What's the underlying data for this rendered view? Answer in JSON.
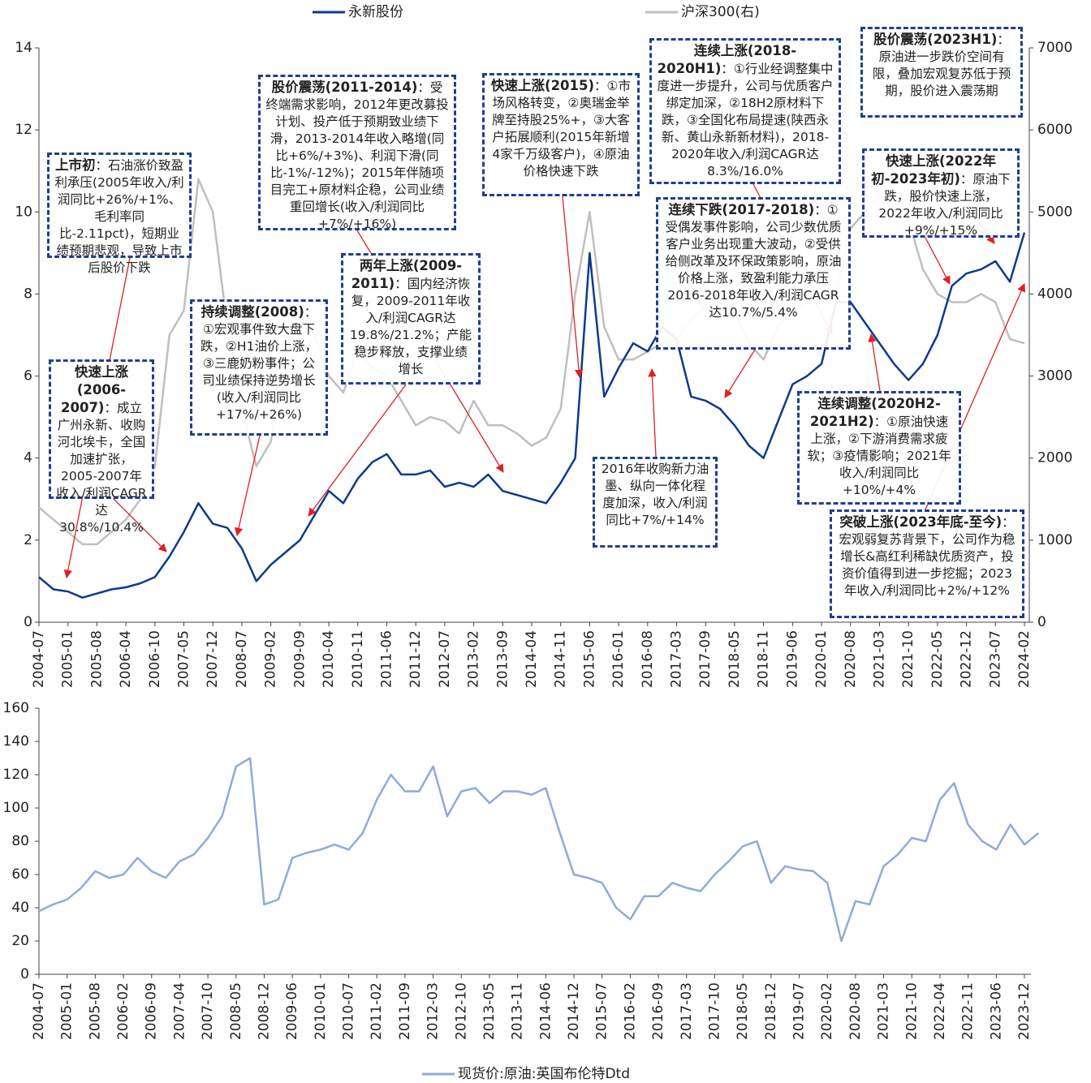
{
  "chart_data": [
    {
      "type": "line",
      "categories": [
        "2004-07",
        null,
        "2005-01",
        null,
        "2005-08",
        null,
        "2006-04",
        null,
        "2006-10",
        null,
        "2007-05",
        null,
        "2007-12",
        null,
        "2008-07",
        null,
        "2009-02",
        null,
        "2009-09",
        null,
        "2010-04",
        null,
        "2010-11",
        null,
        "2011-06",
        null,
        "2011-12",
        null,
        "2012-07",
        null,
        "2013-02",
        null,
        "2013-09",
        null,
        "2014-04",
        null,
        "2014-11",
        null,
        "2015-06",
        null,
        "2016-01",
        null,
        "2016-08",
        null,
        "2017-03",
        null,
        "2017-09",
        null,
        "2018-05",
        null,
        "2018-11",
        null,
        "2019-06",
        null,
        "2020-01",
        null,
        "2020-08",
        null,
        "2021-03",
        null,
        "2021-10",
        null,
        "2022-05",
        null,
        "2022-12",
        null,
        "2023-07",
        null,
        "2024-02"
      ],
      "series": [
        {
          "name": "永新股份",
          "color": "#0b3a8f",
          "values": [
            1.1,
            0.8,
            0.75,
            0.6,
            0.7,
            0.8,
            0.85,
            0.95,
            1.1,
            1.6,
            2.2,
            2.9,
            2.4,
            2.3,
            1.8,
            1.0,
            1.4,
            1.7,
            2.0,
            2.6,
            3.2,
            2.9,
            3.5,
            3.9,
            4.1,
            3.6,
            3.6,
            3.7,
            3.3,
            3.4,
            3.3,
            3.6,
            3.2,
            3.1,
            3.0,
            2.9,
            3.4,
            4.0,
            9.0,
            5.5,
            6.2,
            6.8,
            6.6,
            7.2,
            6.9,
            5.5,
            5.4,
            5.2,
            4.8,
            4.3,
            4.0,
            4.9,
            5.8,
            6.0,
            6.3,
            7.8,
            7.8,
            7.3,
            6.8,
            6.3,
            5.9,
            6.3,
            7.0,
            8.2,
            8.5,
            8.6,
            8.8,
            8.3,
            9.5
          ]
        },
        {
          "name": "沪深300(右)",
          "color": "#bfbfbf",
          "axis": "y2",
          "values": [
            1400,
            1250,
            1100,
            950,
            950,
            1100,
            1250,
            1500,
            1900,
            3500,
            3800,
            5400,
            5000,
            3600,
            2600,
            1900,
            2200,
            3200,
            3100,
            3500,
            3000,
            2800,
            3300,
            3100,
            3000,
            2700,
            2400,
            2500,
            2450,
            2300,
            2700,
            2400,
            2400,
            2300,
            2150,
            2250,
            2600,
            4000,
            5000,
            3600,
            3200,
            3200,
            3300,
            3400,
            3450,
            3700,
            3850,
            4000,
            3800,
            3400,
            3200,
            3600,
            3800,
            3900,
            4100,
            4000,
            4800,
            5000,
            5200,
            5000,
            4900,
            4300,
            4000,
            3900,
            3900,
            4000,
            3900,
            3450,
            3400
          ]
        }
      ],
      "ylim": [
        0,
        14
      ],
      "yticks": [
        0,
        2,
        4,
        6,
        8,
        10,
        12,
        14
      ],
      "y2lim": [
        0,
        7000
      ],
      "y2ticks": [
        0,
        1000,
        2000,
        3000,
        4000,
        5000,
        6000,
        7000
      ],
      "annotations": [
        {
          "title": "上市初",
          "text": "：石油涨价致盈利承压(2005年收入/利润同比+26%/+1%、毛利率同比-2.11pct)，短期业绩预期悲观，导致上市后股价下跌"
        },
        {
          "title": "快速上涨(2006-2007)",
          "text": "：成立广州永新、收购河北埃卡，全国加速扩张，2005-2007年收入/利润CAGR达30.8%/10.4%"
        },
        {
          "title": "持续调整(2008)",
          "text": "：①宏观事件致大盘下跌，②H1油价上涨，③三鹿奶粉事件；公司业绩保持逆势增长(收入/利润同比+17%/+26%)"
        },
        {
          "title": "股价震荡(2011-2014)",
          "text": "：受终端需求影响，2012年更改募投计划、投产低于预期致业绩下滑，2013-2014年收入略增(同比+6%/+3%)、利润下滑(同比-1%/-12%)；2015年伴随项目完工+原材料企稳，公司业绩重回增长(收入/利润同比+7%/+16%)"
        },
        {
          "title": "两年上涨(2009-2011)",
          "text": "：国内经济恢复，2009-2011年收入/利润CAGR达19.8%/21.2%；产能稳步释放，支撑业绩增长"
        },
        {
          "title": "快速上涨(2015)",
          "text": "：①市场风格转变，②奥瑞金举牌至持股25%+，③大客户拓展顺利(2015年新增4家千万级客户)，④原油价格快速下跌"
        },
        {
          "title": "连续上涨(2018-2020H1)",
          "text": "：①行业经调整集中度进一步提升，公司与优质客户绑定加深，②18H2原材料下跌，③全国化布局提速(陕西永新、黄山永新新材料)，2018-2020年收入/利润CAGR达8.3%/16.0%"
        },
        {
          "title": "连续下跌(2017-2018)",
          "text": "：①受偶发事件影响，公司少数优质客户业务出现重大波动，②受供给侧改革及环保政策影响，原油价格上涨，致盈利能力承压2016-2018年收入/利润CAGR达10.7%/5.4%"
        },
        {
          "title": "股价震荡(2023H1)",
          "text": "：原油进一步跌价空间有限，叠加宏观复苏低于预期，股价进入震荡期"
        },
        {
          "title": "快速上涨(2022年初-2023年初)",
          "text": "：原油下跌，股价快速上涨，2022年收入/利润同比+9%/+15%"
        },
        {
          "text": "2016年收购新力油墨、纵向一体化程度加深，收入/利润同比+7%/+14%"
        },
        {
          "title": "连续调整(2020H2-2021H2)",
          "text": "：①原油快速上涨，②下游消费需求疲软；③疫情影响；2021年收入/利润同比+10%/+4%"
        },
        {
          "title": "突破上涨(2023年底-至今)",
          "text": "：宏观弱复苏背景下，公司作为稳增长&高红利稀缺优质资产，投资价值得到进一步挖掘；2023年收入/利润同比+2%/+12%"
        }
      ]
    },
    {
      "type": "line",
      "categories": [
        "2004-07",
        null,
        "2005-01",
        null,
        "2005-08",
        null,
        "2006-02",
        null,
        "2006-09",
        null,
        "2007-04",
        null,
        "2007-10",
        null,
        "2008-05",
        null,
        "2008-12",
        null,
        "2009-06",
        null,
        "2010-01",
        null,
        "2010-07",
        null,
        "2011-02",
        null,
        "2011-09",
        null,
        "2012-03",
        null,
        "2012-10",
        null,
        "2013-05",
        null,
        "2013-11",
        null,
        "2014-06",
        null,
        "2014-12",
        null,
        "2015-07",
        null,
        "2016-02",
        null,
        "2016-09",
        null,
        "2017-03",
        null,
        "2017-10",
        null,
        "2018-05",
        null,
        "2018-12",
        null,
        "2019-07",
        null,
        "2020-02",
        null,
        "2020-08",
        null,
        "2021-03",
        null,
        "2021-10",
        null,
        "2022-04",
        null,
        "2022-11",
        null,
        "2023-06",
        null,
        "2023-12",
        null
      ],
      "series": [
        {
          "name": "现货价:原油:英国布伦特Dtd",
          "color": "#8faadc",
          "values": [
            38,
            42,
            45,
            52,
            62,
            58,
            60,
            70,
            62,
            58,
            68,
            72,
            82,
            95,
            125,
            130,
            42,
            45,
            70,
            73,
            75,
            78,
            75,
            85,
            105,
            120,
            110,
            110,
            125,
            95,
            110,
            112,
            103,
            110,
            110,
            108,
            112,
            85,
            60,
            58,
            55,
            40,
            33,
            47,
            47,
            55,
            52,
            50,
            60,
            68,
            77,
            80,
            55,
            65,
            63,
            62,
            55,
            20,
            44,
            42,
            65,
            72,
            82,
            80,
            105,
            115,
            90,
            80,
            75,
            90,
            78,
            85
          ]
        }
      ],
      "ylim": [
        0,
        160
      ],
      "yticks": [
        0,
        20,
        40,
        60,
        80,
        100,
        120,
        140,
        160
      ]
    }
  ]
}
